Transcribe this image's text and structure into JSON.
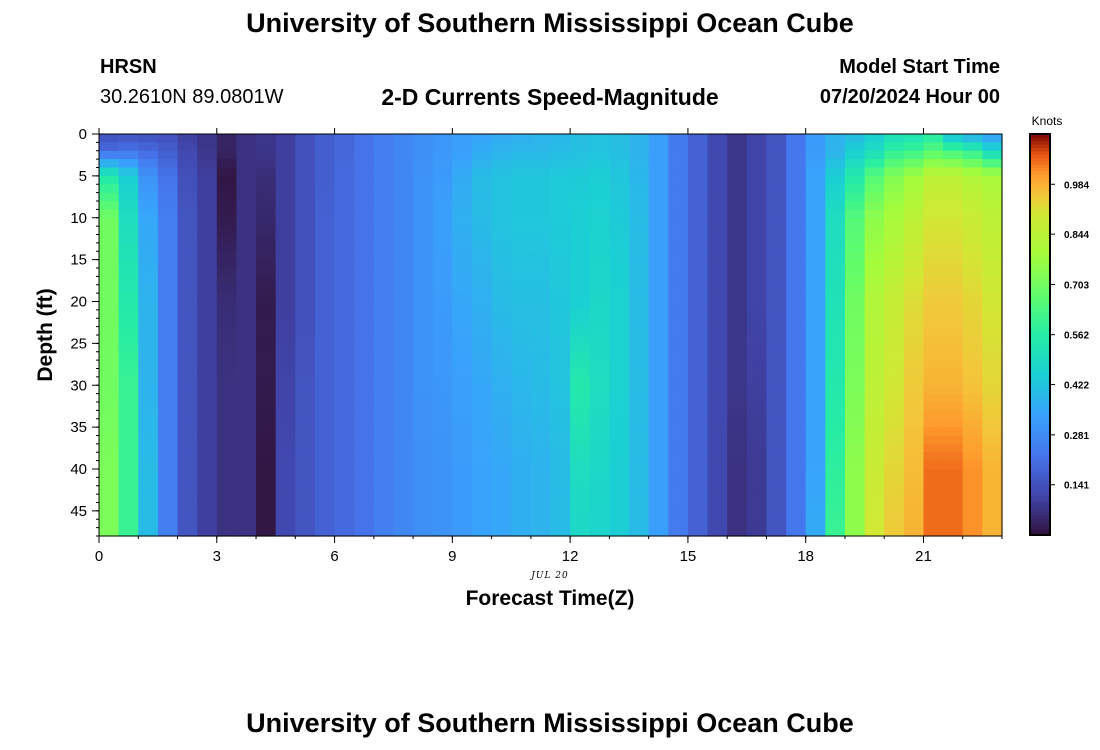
{
  "page": {
    "title": "University of Southern Mississippi Ocean Cube",
    "footer_title": "University of Southern Mississippi Ocean Cube",
    "station_name": "HRSN",
    "station_coords": "30.2610N  89.0801W",
    "subtitle": "2-D Currents Speed-Magnitude",
    "model_start_label": "Model Start Time",
    "model_start_value": "07/20/2024 Hour 00",
    "date_tag": "JUL 20"
  },
  "chart_data": {
    "type": "heatmap",
    "title": "2-D Currents Speed-Magnitude",
    "xlabel": "Forecast Time(Z)",
    "ylabel": "Depth (ft)",
    "x_ticks": [
      0,
      3,
      6,
      9,
      12,
      15,
      18,
      21
    ],
    "y_ticks": [
      0,
      5,
      10,
      15,
      20,
      25,
      30,
      35,
      40,
      45
    ],
    "xlim": [
      0,
      23
    ],
    "ylim": [
      0,
      48
    ],
    "y_inverted": true,
    "colorbar": {
      "unit": "Knots",
      "ticks": [
        0.141,
        0.281,
        0.422,
        0.562,
        0.703,
        0.844,
        0.984
      ],
      "range": [
        0.0,
        1.125
      ],
      "colormap": "turbo"
    },
    "time_hours": [
      0,
      0.5,
      1,
      1.5,
      2,
      2.5,
      3,
      3.5,
      4,
      4.5,
      5,
      5.5,
      6,
      6.5,
      7,
      7.5,
      8,
      8.5,
      9,
      9.5,
      10,
      10.5,
      11,
      11.5,
      12,
      12.5,
      13,
      13.5,
      14,
      14.5,
      15,
      15.5,
      16,
      16.5,
      17,
      17.5,
      18,
      18.5,
      19,
      19.5,
      20,
      20.5,
      21,
      21.5,
      22,
      22.5
    ],
    "profile_depths_ft": [
      0,
      2,
      5,
      10,
      20,
      30,
      40,
      48
    ],
    "speed_knots": [
      [
        0.14,
        0.2,
        0.55,
        0.7,
        0.7,
        0.7,
        0.72,
        0.72
      ],
      [
        0.14,
        0.22,
        0.45,
        0.5,
        0.55,
        0.6,
        0.6,
        0.6
      ],
      [
        0.14,
        0.2,
        0.3,
        0.35,
        0.38,
        0.38,
        0.4,
        0.4
      ],
      [
        0.14,
        0.17,
        0.22,
        0.25,
        0.25,
        0.25,
        0.25,
        0.25
      ],
      [
        0.1,
        0.12,
        0.14,
        0.15,
        0.15,
        0.15,
        0.15,
        0.15
      ],
      [
        0.08,
        0.08,
        0.1,
        0.1,
        0.1,
        0.1,
        0.1,
        0.1
      ],
      [
        0.04,
        0.04,
        0.01,
        0.02,
        0.06,
        0.07,
        0.07,
        0.07
      ],
      [
        0.07,
        0.07,
        0.07,
        0.07,
        0.07,
        0.07,
        0.07,
        0.07
      ],
      [
        0.08,
        0.08,
        0.06,
        0.05,
        0.02,
        0.02,
        0.01,
        0.01
      ],
      [
        0.1,
        0.1,
        0.1,
        0.1,
        0.1,
        0.11,
        0.12,
        0.12
      ],
      [
        0.14,
        0.14,
        0.14,
        0.14,
        0.14,
        0.15,
        0.15,
        0.15
      ],
      [
        0.17,
        0.17,
        0.17,
        0.18,
        0.18,
        0.18,
        0.18,
        0.18
      ],
      [
        0.19,
        0.19,
        0.2,
        0.2,
        0.2,
        0.2,
        0.2,
        0.2
      ],
      [
        0.22,
        0.22,
        0.22,
        0.22,
        0.22,
        0.22,
        0.22,
        0.22
      ],
      [
        0.25,
        0.25,
        0.25,
        0.25,
        0.25,
        0.25,
        0.25,
        0.25
      ],
      [
        0.27,
        0.27,
        0.27,
        0.27,
        0.27,
        0.27,
        0.27,
        0.27
      ],
      [
        0.29,
        0.29,
        0.3,
        0.3,
        0.3,
        0.3,
        0.29,
        0.29
      ],
      [
        0.31,
        0.31,
        0.32,
        0.33,
        0.32,
        0.31,
        0.3,
        0.3
      ],
      [
        0.33,
        0.33,
        0.36,
        0.37,
        0.35,
        0.33,
        0.32,
        0.32
      ],
      [
        0.34,
        0.36,
        0.4,
        0.4,
        0.37,
        0.35,
        0.34,
        0.34
      ],
      [
        0.36,
        0.38,
        0.42,
        0.42,
        0.4,
        0.37,
        0.35,
        0.35
      ],
      [
        0.37,
        0.39,
        0.43,
        0.43,
        0.41,
        0.39,
        0.37,
        0.37
      ],
      [
        0.38,
        0.39,
        0.43,
        0.43,
        0.41,
        0.4,
        0.38,
        0.38
      ],
      [
        0.39,
        0.4,
        0.44,
        0.44,
        0.43,
        0.42,
        0.4,
        0.4
      ],
      [
        0.41,
        0.41,
        0.44,
        0.45,
        0.45,
        0.55,
        0.5,
        0.48
      ],
      [
        0.42,
        0.42,
        0.45,
        0.46,
        0.48,
        0.5,
        0.48,
        0.47
      ],
      [
        0.41,
        0.41,
        0.43,
        0.44,
        0.46,
        0.46,
        0.45,
        0.45
      ],
      [
        0.38,
        0.38,
        0.39,
        0.4,
        0.4,
        0.4,
        0.4,
        0.4
      ],
      [
        0.33,
        0.33,
        0.33,
        0.33,
        0.33,
        0.33,
        0.33,
        0.33
      ],
      [
        0.24,
        0.24,
        0.24,
        0.24,
        0.24,
        0.24,
        0.24,
        0.24
      ],
      [
        0.18,
        0.18,
        0.18,
        0.18,
        0.18,
        0.18,
        0.18,
        0.18
      ],
      [
        0.12,
        0.12,
        0.12,
        0.12,
        0.12,
        0.12,
        0.12,
        0.12
      ],
      [
        0.08,
        0.08,
        0.08,
        0.08,
        0.08,
        0.08,
        0.07,
        0.07
      ],
      [
        0.11,
        0.11,
        0.11,
        0.11,
        0.11,
        0.1,
        0.09,
        0.09
      ],
      [
        0.15,
        0.15,
        0.15,
        0.15,
        0.15,
        0.15,
        0.15,
        0.15
      ],
      [
        0.23,
        0.23,
        0.23,
        0.23,
        0.23,
        0.23,
        0.23,
        0.23
      ],
      [
        0.32,
        0.32,
        0.34,
        0.34,
        0.34,
        0.34,
        0.34,
        0.36
      ],
      [
        0.38,
        0.38,
        0.45,
        0.5,
        0.52,
        0.55,
        0.58,
        0.6
      ],
      [
        0.4,
        0.45,
        0.55,
        0.65,
        0.7,
        0.72,
        0.75,
        0.75
      ],
      [
        0.45,
        0.5,
        0.65,
        0.75,
        0.82,
        0.85,
        0.88,
        0.9
      ],
      [
        0.5,
        0.58,
        0.73,
        0.8,
        0.87,
        0.9,
        0.93,
        0.95
      ],
      [
        0.52,
        0.6,
        0.78,
        0.85,
        0.92,
        0.95,
        0.97,
        0.98
      ],
      [
        0.55,
        0.65,
        0.85,
        0.9,
        0.95,
        0.98,
        1.05,
        1.05
      ],
      [
        0.4,
        0.62,
        0.85,
        0.9,
        0.95,
        0.98,
        1.05,
        1.05
      ],
      [
        0.35,
        0.58,
        0.82,
        0.88,
        0.93,
        0.96,
        1.02,
        1.02
      ],
      [
        0.32,
        0.48,
        0.8,
        0.85,
        0.9,
        0.93,
        0.98,
        0.98
      ]
    ]
  }
}
